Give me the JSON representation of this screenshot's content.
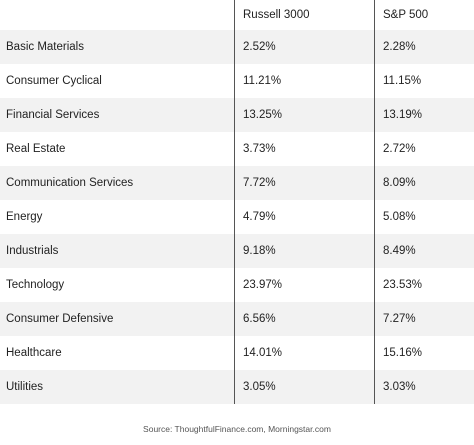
{
  "table": {
    "headers": {
      "sector": "",
      "russell_3000": "Russell 3000",
      "sp_500": "S&P 500"
    },
    "rows": [
      {
        "sector": "Basic Materials",
        "russell_3000": "2.52%",
        "sp_500": "2.28%"
      },
      {
        "sector": "Consumer Cyclical",
        "russell_3000": "11.21%",
        "sp_500": "11.15%"
      },
      {
        "sector": "Financial Services",
        "russell_3000": "13.25%",
        "sp_500": "13.19%"
      },
      {
        "sector": "Real Estate",
        "russell_3000": "3.73%",
        "sp_500": "2.72%"
      },
      {
        "sector": "Communication Services",
        "russell_3000": "7.72%",
        "sp_500": "8.09%"
      },
      {
        "sector": "Energy",
        "russell_3000": "4.79%",
        "sp_500": "5.08%"
      },
      {
        "sector": "Industrials",
        "russell_3000": "9.18%",
        "sp_500": "8.49%"
      },
      {
        "sector": "Technology",
        "russell_3000": "23.97%",
        "sp_500": "23.53%"
      },
      {
        "sector": "Consumer Defensive",
        "russell_3000": "6.56%",
        "sp_500": "7.27%"
      },
      {
        "sector": "Healthcare",
        "russell_3000": "14.01%",
        "sp_500": "15.16%"
      },
      {
        "sector": "Utilities",
        "russell_3000": "3.05%",
        "sp_500": "3.03%"
      }
    ]
  },
  "source": "Source: ThoughtfulFinance.com, Morningstar.com",
  "colors": {
    "stripe": "#f2f2f2",
    "divider": "#555555",
    "text": "#222222"
  }
}
